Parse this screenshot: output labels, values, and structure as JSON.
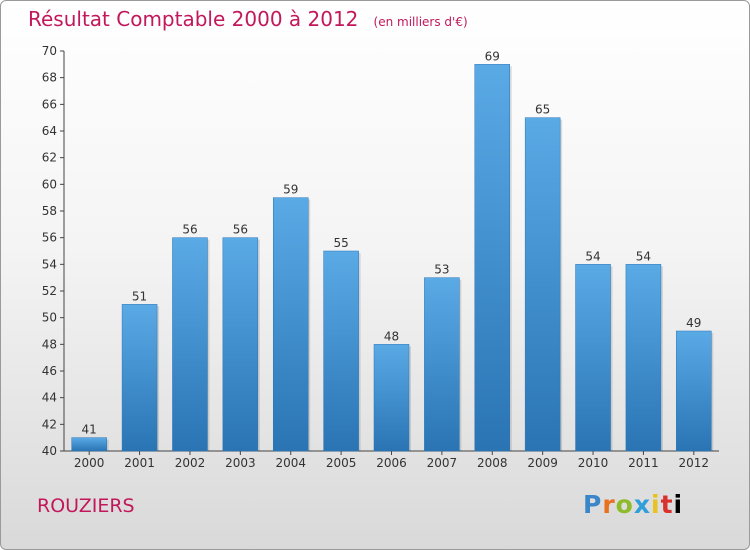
{
  "header": {
    "title": "Résultat Comptable 2000 à 2012",
    "unit": "(en milliers d'€)"
  },
  "footer": {
    "place": "ROUZIERS",
    "logo_letters": [
      "P",
      "r",
      "o",
      "x",
      "i",
      "t",
      "i"
    ]
  },
  "chart_data": {
    "type": "bar",
    "title": "Résultat Comptable 2000 à 2012",
    "subtitle": "(en milliers d'€)",
    "categories": [
      "2000",
      "2001",
      "2002",
      "2003",
      "2004",
      "2005",
      "2006",
      "2007",
      "2008",
      "2009",
      "2010",
      "2011",
      "2012"
    ],
    "values": [
      41,
      51,
      56,
      56,
      59,
      55,
      48,
      53,
      69,
      65,
      54,
      54,
      49
    ],
    "ylim": [
      40,
      70
    ],
    "yticks": [
      40,
      42,
      44,
      46,
      48,
      50,
      52,
      54,
      56,
      58,
      60,
      62,
      64,
      66,
      68,
      70
    ],
    "grid": false,
    "bar_color": "#3d8fd0",
    "bar_color_light": "#5aaae6",
    "bar_color_dark": "#2a74b4"
  }
}
